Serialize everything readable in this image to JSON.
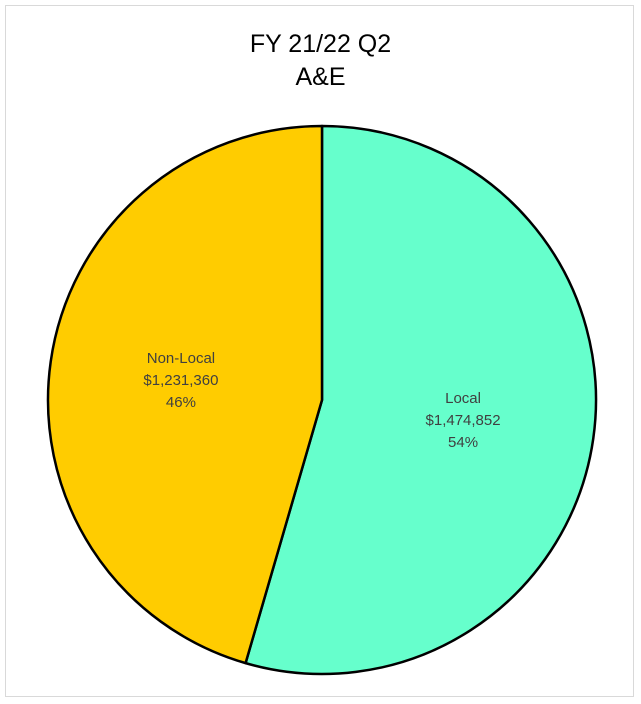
{
  "chart_data": {
    "type": "pie",
    "title": [
      "FY 21/22 Q2",
      "A&E"
    ],
    "slices": [
      {
        "label": "Local",
        "value_text": "$1,474,852",
        "value": 1474852,
        "percent_text": "54%",
        "color": "#66ffcc"
      },
      {
        "label": "Non-Local",
        "value_text": "$1,231,360",
        "value": 1231360,
        "percent_text": "46%",
        "color": "#ffcc00"
      }
    ],
    "start_angle_deg": 0,
    "direction": "clockwise",
    "outline_color": "#000000",
    "legend": "none"
  }
}
